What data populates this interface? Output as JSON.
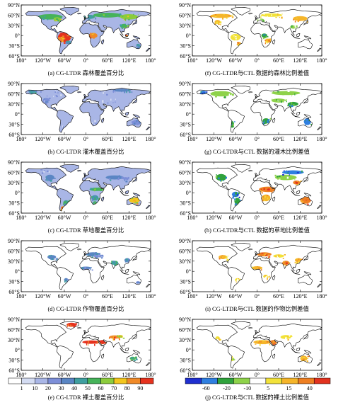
{
  "lon_ticks": [
    "180°",
    "120°W",
    "60°W",
    "0°",
    "60°E",
    "120°E",
    "180°"
  ],
  "lat_ticks": [
    "90°N",
    "60°N",
    "30°N",
    "0°",
    "30°S",
    "60°S"
  ],
  "panels": [
    {
      "id": "a",
      "caption": "(a) CG-LTDR 森林覆盖百分比",
      "scheme": "pct",
      "cover": "forest"
    },
    {
      "id": "b",
      "caption": "(b) CG-LTDR 灌木覆盖百分比",
      "scheme": "pct",
      "cover": "shrub"
    },
    {
      "id": "c",
      "caption": "(c) CG-LTDR 草地覆盖百分比",
      "scheme": "pct",
      "cover": "grass"
    },
    {
      "id": "d",
      "caption": "(d) CG-LTDR 作物覆盖百分比",
      "scheme": "pct",
      "cover": "crop"
    },
    {
      "id": "e",
      "caption": "(e) CG-LTDR 裸土覆盖百分比",
      "scheme": "pct",
      "cover": "bare"
    },
    {
      "id": "f",
      "caption": "(f) CG-LTDR与CTL 数据的森林比例差值",
      "scheme": "diff",
      "cover": "forest"
    },
    {
      "id": "g",
      "caption": "(g) CG-LTDR与CTL 数据的灌木比例差值",
      "scheme": "diff",
      "cover": "shrub"
    },
    {
      "id": "h",
      "caption": "(h) CG-LTDR与CTL 数据的草地比例差值",
      "scheme": "diff",
      "cover": "grass"
    },
    {
      "id": "i",
      "caption": "(i) CG-LTDR与CTL 数据的作物比例差值",
      "scheme": "diff",
      "cover": "crop"
    },
    {
      "id": "j",
      "caption": "(j) CG-LTDR与CTL 数据的裸土比例差值",
      "scheme": "diff",
      "cover": "bare"
    }
  ],
  "colorbar_pct": {
    "labels": [
      "1",
      "10",
      "20",
      "30",
      "40",
      "50",
      "60",
      "70",
      "80",
      "90"
    ],
    "colors": [
      "#ffffff",
      "#d4dcf2",
      "#a9b6e6",
      "#7d8fd8",
      "#5a86c4",
      "#3f9fa0",
      "#46b35a",
      "#8ccc3c",
      "#f2c61e",
      "#f08a28",
      "#e6321e"
    ]
  },
  "colorbar_diff": {
    "labels": [
      "-60",
      "-20",
      "-10",
      "5",
      "15",
      "40"
    ],
    "colors": [
      "#1f2fd0",
      "#2f7fe0",
      "#2fa23c",
      "#8ed24a",
      "#ffffff",
      "#f2e23a",
      "#f5b52a",
      "#ee7f22",
      "#e2321e"
    ]
  }
}
